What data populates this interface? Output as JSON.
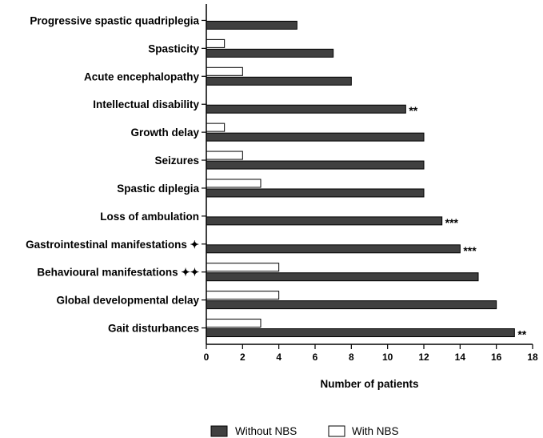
{
  "chart_data": {
    "type": "bar",
    "orientation": "horizontal",
    "title": "",
    "xlabel": "Number of patients",
    "ylabel": "",
    "xlim": [
      0,
      18
    ],
    "xticks": [
      "0",
      "2",
      "4",
      "6",
      "8",
      "10",
      "12",
      "14",
      "16",
      "18"
    ],
    "grid": false,
    "legend_position": "bottom",
    "categories": [
      "Progressive spastic quadriplegia",
      "Spasticity",
      "Acute encephalopathy",
      "Intellectual disability",
      "Growth delay",
      "Seizures",
      "Spastic diplegia",
      "Loss of ambulation",
      "Gastrointestinal manifestations ✦",
      "Behavioural manifestations ✦✦",
      "Global developmental delay",
      "Gait disturbances"
    ],
    "series": [
      {
        "name": "With NBS",
        "color": "#ffffff",
        "values": [
          0,
          1,
          2,
          0,
          1,
          2,
          3,
          0,
          0,
          4,
          4,
          3
        ]
      },
      {
        "name": "Without NBS",
        "color": "#404040",
        "values": [
          5,
          7,
          8,
          11,
          12,
          12,
          12,
          13,
          14,
          15,
          16,
          17
        ]
      }
    ],
    "annotations": [
      "",
      "",
      "",
      "**",
      "",
      "",
      "",
      "***",
      "***",
      "",
      "",
      "**"
    ]
  }
}
